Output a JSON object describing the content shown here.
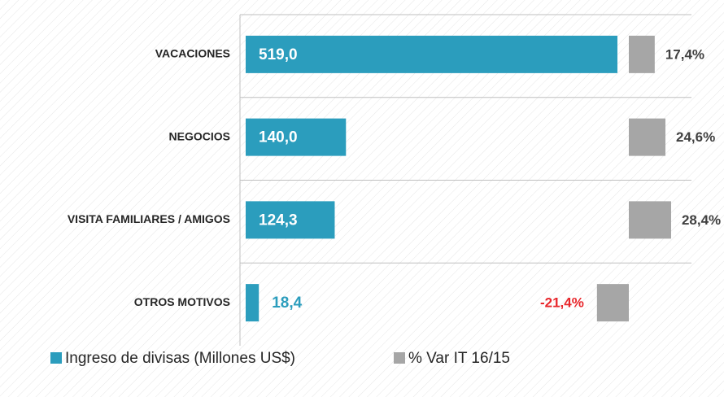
{
  "chart_data": {
    "type": "bar",
    "orientation": "horizontal",
    "categories": [
      "VACACIONES",
      "NEGOCIOS",
      "VISITA FAMILIARES / AMIGOS",
      "OTROS MOTIVOS"
    ],
    "series": [
      {
        "name": "Ingreso de divisas (Millones US$)",
        "color": "#2b9dbd",
        "values": [
          519.0,
          140.0,
          124.3,
          18.4
        ],
        "value_labels": [
          "519,0",
          "140,0",
          "124,3",
          "18,4"
        ]
      },
      {
        "name": "% Var IT 16/15",
        "color": "#a6a6a6",
        "values": [
          17.4,
          24.6,
          28.4,
          -21.4
        ],
        "value_labels": [
          "17,4%",
          "24,6%",
          "28,4%",
          "-21,4%"
        ]
      }
    ]
  }
}
